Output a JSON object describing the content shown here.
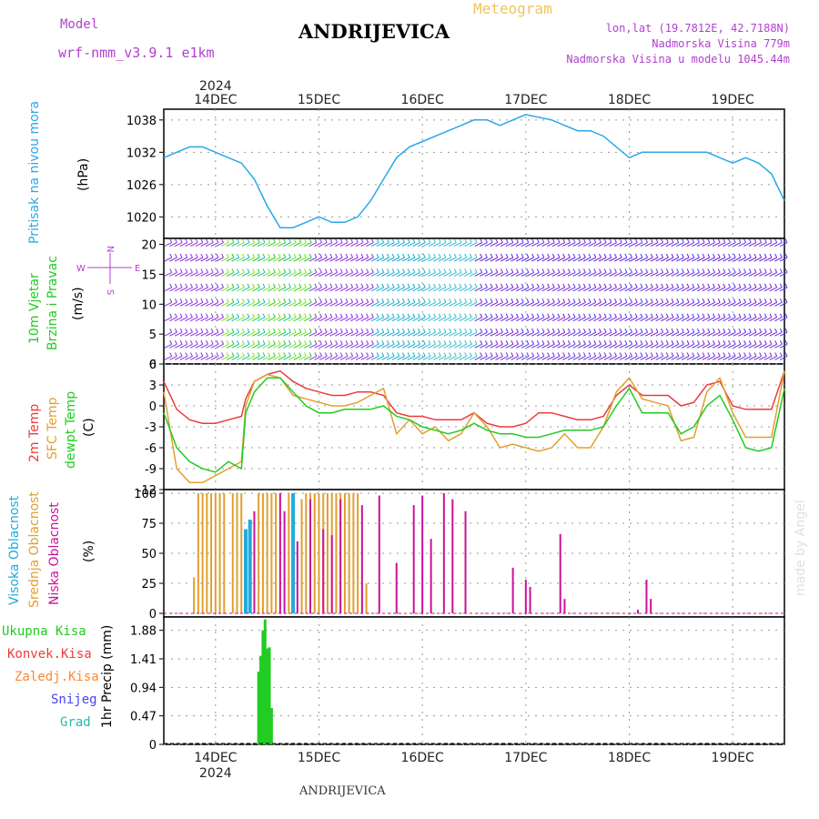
{
  "header": {
    "model_label": "Model",
    "model_name": "wrf-nmm_v3.9.1  e1km",
    "station_title": "ANDRIJEVICA",
    "product": "Meteogram",
    "coords": "lon,lat (19.7812E, 42.7188N)",
    "elevation": "Nadmorska Visina 779m",
    "model_elevation": "Nadmorska Visina u modelu 1045.44m",
    "credit": "made by Angel",
    "footer_station": "ANDRIJEVICA"
  },
  "colors": {
    "pressure": "#2aa8e8",
    "temp2m": "#ee3b3b",
    "sfc_temp": "#e0a030",
    "dewpoint": "#22cc22",
    "high_cloud": "#22aadd",
    "mid_cloud": "#e0a030",
    "low_cloud": "#cc1199",
    "precip_total": "#22cc22",
    "precip_conv": "#ee3b3b",
    "precip_freezing": "#ff8833",
    "snow": "#4444ee",
    "graupel": "#22bbaa",
    "header_purple": "#b040d0"
  },
  "axes": {
    "year": "2024",
    "day_labels": [
      "14DEC",
      "15DEC",
      "16DEC",
      "17DEC",
      "18DEC",
      "19DEC"
    ],
    "day_positions_hours": [
      0,
      24,
      48,
      72,
      96,
      120
    ],
    "xlim_hours": [
      -12,
      132
    ]
  },
  "panels": {
    "pressure": {
      "title": "Pritisak na nivou mora",
      "unit": "(hPa)",
      "ticks": [
        "1038",
        "1032",
        "1026",
        "1020"
      ]
    },
    "wind": {
      "title_line1": "10m Vjetar",
      "title_line2": "Brzina i Pravac",
      "unit": "(m/s)",
      "compass_top": "N",
      "compass_left": "W",
      "compass_right": "E",
      "compass_bottom": "S",
      "ticks": [
        "20",
        "15",
        "10",
        "5",
        "0"
      ]
    },
    "temperature": {
      "title_line1": "2m Temp",
      "title_line2": "SFC Temp",
      "title_line3": "dewpt Temp",
      "unit": "(C)",
      "ticks": [
        "6",
        "3",
        "0",
        "-3",
        "-6",
        "-9",
        "-12"
      ]
    },
    "cloud": {
      "title_line1": "Visoka Oblacnost",
      "title_line2": "Srednja Oblacnost",
      "title_line3": "Niska Oblacnost",
      "unit": "(%)",
      "ticks": [
        "100",
        "75",
        "50",
        "25",
        "0"
      ]
    },
    "precip": {
      "legend_total": "Ukupna Kisa",
      "legend_conv": "Konvek.Kisa",
      "legend_freezing": "Zaledj.Kisa",
      "legend_snow": "Snijeg",
      "legend_graupel": "Grad",
      "unit": "1hr Precip (mm)",
      "ticks": [
        "1.88",
        "1.41",
        "0.94",
        "0.47",
        "0"
      ]
    }
  },
  "chart_data": [
    {
      "type": "line",
      "panel": "pressure",
      "ylim": [
        1016,
        1040
      ],
      "x": [
        -12,
        -9,
        -6,
        -3,
        0,
        3,
        6,
        9,
        12,
        15,
        18,
        21,
        24,
        27,
        30,
        33,
        36,
        39,
        42,
        45,
        48,
        51,
        54,
        57,
        60,
        63,
        66,
        69,
        72,
        75,
        78,
        81,
        84,
        87,
        90,
        93,
        96,
        99,
        102,
        105,
        108,
        111,
        114,
        117,
        120,
        123,
        126,
        129,
        132
      ],
      "series": [
        {
          "values": [
            1031,
            1032,
            1033,
            1033,
            1032,
            1031,
            1030,
            1027,
            1022,
            1018,
            1018,
            1019,
            1020,
            1019,
            1019,
            1020,
            1023,
            1027,
            1031,
            1033,
            1034,
            1035,
            1036,
            1037,
            1038,
            1038,
            1037,
            1038,
            1039,
            1038.5,
            1038,
            1037,
            1036,
            1036,
            1035,
            1033,
            1031,
            1032,
            1032,
            1032,
            1032,
            1032,
            1032,
            1031,
            1030,
            1031,
            1030,
            1028,
            1023
          ]
        }
      ]
    },
    {
      "type": "line",
      "panel": "temperature",
      "ylim": [
        -12,
        6
      ],
      "x": [
        -12,
        -9,
        -6,
        -3,
        0,
        3,
        6,
        7,
        9,
        12,
        15,
        18,
        21,
        24,
        27,
        30,
        33,
        36,
        39,
        42,
        45,
        48,
        51,
        54,
        57,
        60,
        63,
        66,
        69,
        72,
        75,
        78,
        81,
        84,
        87,
        90,
        93,
        96,
        99,
        102,
        105,
        108,
        111,
        114,
        117,
        120,
        123,
        126,
        129,
        132
      ],
      "series": [
        {
          "name": "2m Temp",
          "values": [
            3.5,
            -0.5,
            -2,
            -2.5,
            -2.5,
            -2,
            -1.5,
            1,
            3.5,
            4.5,
            5,
            3.5,
            2.5,
            2,
            1.5,
            1.5,
            2,
            2,
            1.5,
            -1,
            -1.5,
            -1.5,
            -2,
            -2,
            -2,
            -1,
            -2.5,
            -3,
            -3,
            -2.5,
            -1,
            -1,
            -1.5,
            -2,
            -2,
            -1.5,
            1.5,
            3,
            1.5,
            1.5,
            1.5,
            0,
            0.5,
            3,
            3.5,
            0,
            -0.5,
            -0.5,
            -0.5,
            5
          ]
        },
        {
          "name": "SFC Temp",
          "values": [
            2,
            -9,
            -11,
            -11,
            -10,
            -9,
            -8,
            0,
            3.5,
            4.5,
            4,
            1.5,
            1,
            0.5,
            0,
            0,
            0.5,
            1.5,
            2.5,
            -4,
            -2,
            -4,
            -3,
            -5,
            -4,
            -1,
            -3,
            -6,
            -5.5,
            -6,
            -6.5,
            -6,
            -4,
            -6,
            -6,
            -3,
            2,
            4,
            1,
            0.5,
            0,
            -5,
            -4.5,
            2,
            4,
            -1,
            -4.5,
            -4.5,
            -4.5,
            5
          ]
        },
        {
          "name": "dewpt Temp",
          "values": [
            -1,
            -6,
            -8,
            -9,
            -9.5,
            -8,
            -9,
            -1,
            2,
            4,
            4,
            2,
            0,
            -1,
            -1,
            -0.5,
            -0.5,
            -0.5,
            0,
            -1.5,
            -2,
            -3,
            -3.5,
            -4,
            -3.5,
            -2.5,
            -3.5,
            -4,
            -4,
            -4.5,
            -4.5,
            -4,
            -3.5,
            -3.5,
            -3.5,
            -3,
            0,
            2.5,
            -1,
            -1,
            -1,
            -4,
            -3,
            0,
            1.5,
            -2,
            -6,
            -6.5,
            -6,
            2.5
          ]
        }
      ]
    },
    {
      "type": "bar",
      "panel": "cloud",
      "ylim": [
        0,
        100
      ],
      "series": [
        {
          "name": "Srednja Oblacnost",
          "x": [
            -5,
            -4,
            -3,
            -2,
            -1,
            0,
            1,
            2,
            4,
            5,
            6,
            10,
            11,
            12,
            13,
            14,
            17,
            20,
            21,
            22,
            23,
            24,
            25,
            26,
            27,
            28,
            29,
            30,
            31,
            32,
            33,
            35
          ],
          "values": [
            30,
            100,
            100,
            100,
            100,
            100,
            100,
            100,
            100,
            100,
            100,
            100,
            100,
            100,
            100,
            100,
            100,
            95,
            100,
            100,
            100,
            100,
            100,
            100,
            100,
            100,
            100,
            100,
            100,
            100,
            100,
            25
          ]
        },
        {
          "name": "Visoka Oblacnost",
          "x": [
            7,
            8,
            18
          ],
          "values": [
            70,
            78,
            100
          ]
        },
        {
          "name": "Niska Oblacnost",
          "x": [
            9,
            15,
            16,
            19,
            22,
            25,
            27,
            29,
            34,
            38,
            42,
            46,
            48,
            50,
            53,
            55,
            58,
            69,
            72,
            73,
            80,
            81,
            98,
            100,
            101
          ],
          "values": [
            85,
            100,
            85,
            60,
            95,
            70,
            65,
            95,
            90,
            98,
            42,
            90,
            98,
            62,
            100,
            95,
            85,
            38,
            28,
            22,
            66,
            12,
            3,
            28,
            12
          ]
        }
      ]
    },
    {
      "type": "bar",
      "panel": "precip",
      "ylim": [
        0,
        2.1
      ],
      "series": [
        {
          "name": "Ukupna Kisa",
          "x": [
            10,
            10.5,
            11,
            11.5,
            12,
            12.5,
            13
          ],
          "values": [
            1.2,
            1.46,
            1.88,
            2.06,
            1.58,
            1.6,
            0.6
          ]
        }
      ]
    }
  ]
}
